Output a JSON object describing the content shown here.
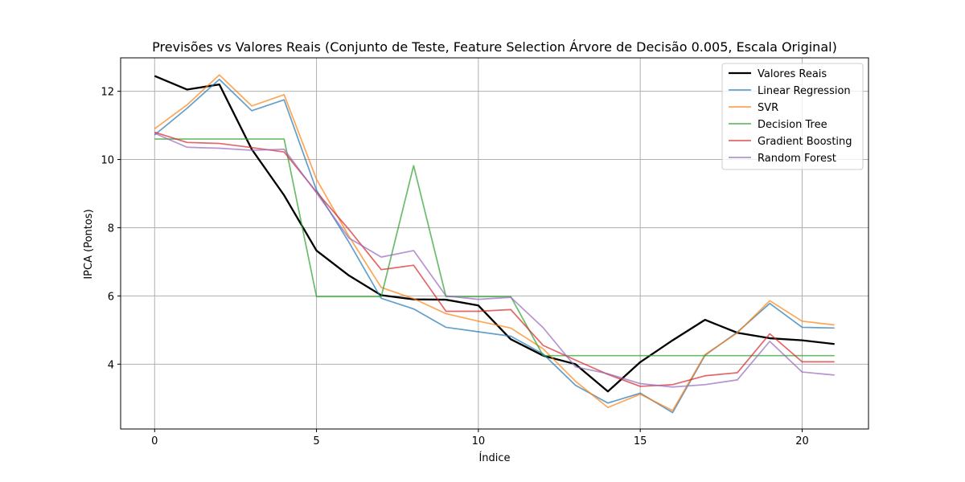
{
  "chart_data": {
    "type": "line",
    "title": "Previsões vs Valores Reais (Conjunto de Teste, Feature Selection Árvore de Decisão 0.005, Escala Original)",
    "xlabel": "Índice",
    "ylabel": "IPCA (Pontos)",
    "xlim": [
      -1.05,
      22.05
    ],
    "ylim": [
      2.1,
      12.98
    ],
    "xticks": [
      0,
      5,
      10,
      15,
      20
    ],
    "yticks": [
      4,
      6,
      8,
      10,
      12
    ],
    "grid": true,
    "legend_position": "top-right",
    "x": [
      0,
      1,
      2,
      3,
      4,
      5,
      6,
      7,
      8,
      9,
      10,
      11,
      12,
      13,
      14,
      15,
      16,
      17,
      18,
      19,
      20,
      21
    ],
    "series": [
      {
        "name": "Valores Reais",
        "color": "#000000",
        "width": 2.3,
        "opacity": 1.0,
        "values": [
          12.45,
          12.05,
          12.2,
          10.3,
          8.95,
          7.33,
          6.6,
          6.02,
          5.9,
          5.89,
          5.72,
          4.73,
          4.25,
          4.0,
          3.2,
          4.06,
          4.7,
          5.3,
          4.92,
          4.76,
          4.7,
          4.59
        ]
      },
      {
        "name": "Linear Regression",
        "color": "#1f77b4",
        "width": 1.7,
        "opacity": 0.7,
        "values": [
          10.72,
          11.5,
          12.35,
          11.43,
          11.75,
          9.1,
          7.58,
          5.93,
          5.62,
          5.08,
          4.95,
          4.82,
          4.3,
          3.38,
          2.86,
          3.15,
          2.58,
          4.26,
          4.94,
          5.78,
          5.08,
          5.06
        ]
      },
      {
        "name": "SVR",
        "color": "#ff7f0e",
        "width": 1.7,
        "opacity": 0.7,
        "values": [
          10.9,
          11.6,
          12.48,
          11.57,
          11.9,
          9.42,
          7.75,
          6.25,
          5.92,
          5.48,
          5.26,
          5.06,
          4.45,
          3.5,
          2.73,
          3.12,
          2.64,
          4.28,
          4.92,
          5.86,
          5.26,
          5.15
        ]
      },
      {
        "name": "Decision Tree",
        "color": "#2ca02c",
        "width": 1.7,
        "opacity": 0.7,
        "values": [
          10.6,
          10.6,
          10.6,
          10.6,
          10.6,
          5.98,
          5.98,
          5.98,
          9.82,
          5.98,
          5.98,
          5.98,
          4.25,
          4.25,
          4.25,
          4.25,
          4.25,
          4.25,
          4.25,
          4.25,
          4.25,
          4.25
        ]
      },
      {
        "name": "Gradient Boosting",
        "color": "#d62728",
        "width": 1.7,
        "opacity": 0.7,
        "values": [
          10.8,
          10.5,
          10.47,
          10.35,
          10.22,
          9.05,
          7.95,
          6.77,
          6.9,
          5.55,
          5.55,
          5.6,
          4.55,
          4.12,
          3.7,
          3.35,
          3.4,
          3.66,
          3.75,
          4.89,
          4.07,
          4.07
        ]
      },
      {
        "name": "Random Forest",
        "color": "#9467bd",
        "width": 1.7,
        "opacity": 0.7,
        "values": [
          10.77,
          10.36,
          10.33,
          10.27,
          10.3,
          9.02,
          7.7,
          7.14,
          7.33,
          6.0,
          5.9,
          5.96,
          5.07,
          3.92,
          3.72,
          3.43,
          3.33,
          3.4,
          3.54,
          4.67,
          3.77,
          3.68
        ]
      }
    ]
  }
}
